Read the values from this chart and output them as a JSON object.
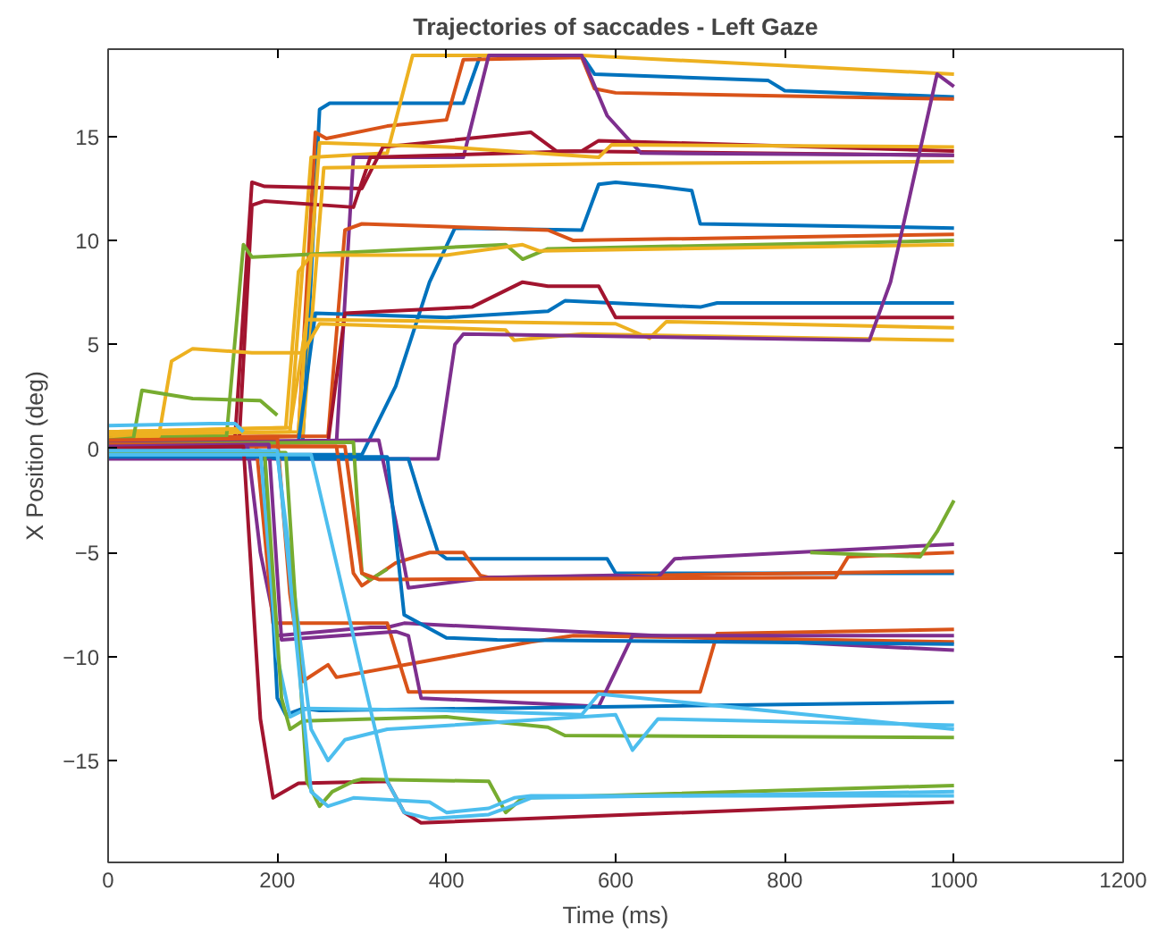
{
  "chart_data": {
    "type": "line",
    "title": "Trajectories of saccades - Left Gaze",
    "xlabel": "Time (ms)",
    "ylabel": "X Position (deg)",
    "xlim": [
      0,
      1200
    ],
    "ylim": [
      -19.9,
      19.2
    ],
    "xticks": [
      0,
      200,
      400,
      600,
      800,
      1000,
      1200
    ],
    "yticks": [
      -15,
      -10,
      -5,
      0,
      5,
      10,
      15
    ],
    "grid": false,
    "marker": "none",
    "line_style": "solid",
    "series": [
      {
        "color": "#0072bd",
        "x": [
          0,
          230,
          250,
          262,
          420,
          440,
          560,
          575,
          780,
          800,
          1000
        ],
        "values": [
          0.3,
          0.3,
          16.3,
          16.6,
          16.6,
          18.9,
          18.9,
          18.0,
          17.7,
          17.2,
          16.9
        ]
      },
      {
        "color": "#d95319",
        "x": [
          0,
          225,
          245,
          258,
          330,
          400,
          420,
          560,
          575,
          600,
          1000
        ],
        "values": [
          0.5,
          0.6,
          15.2,
          14.9,
          15.5,
          15.8,
          18.7,
          18.8,
          17.3,
          17.1,
          16.8
        ]
      },
      {
        "color": "#edb120",
        "x": [
          0,
          215,
          240,
          330,
          360,
          560,
          1000
        ],
        "values": [
          0.6,
          0.8,
          14.0,
          14.2,
          18.9,
          18.9,
          18.0
        ]
      },
      {
        "color": "#a2142f",
        "x": [
          0,
          150,
          170,
          185,
          300,
          325,
          500,
          530,
          1000
        ],
        "values": [
          0.4,
          0.5,
          12.8,
          12.6,
          12.5,
          14.5,
          15.2,
          14.3,
          14.1
        ]
      },
      {
        "color": "#7e2f8e",
        "x": [
          0,
          270,
          290,
          420,
          450,
          560,
          590,
          630,
          1000
        ],
        "values": [
          0.2,
          0.3,
          14.0,
          14.0,
          18.9,
          18.9,
          16.0,
          14.2,
          14.1
        ]
      },
      {
        "color": "#a2142f",
        "x": [
          0,
          155,
          170,
          185,
          290,
          310,
          560,
          580,
          1000
        ],
        "values": [
          0.3,
          0.4,
          11.7,
          11.9,
          11.6,
          14.0,
          14.3,
          14.8,
          14.3
        ]
      },
      {
        "color": "#edb120",
        "x": [
          0,
          225,
          250,
          400,
          580,
          595,
          1000
        ],
        "values": [
          0.7,
          0.8,
          14.7,
          14.5,
          14.0,
          14.6,
          14.5
        ]
      },
      {
        "color": "#edb120",
        "x": [
          0,
          230,
          255,
          600,
          1000
        ],
        "values": [
          0.4,
          0.6,
          13.5,
          13.7,
          13.8
        ]
      },
      {
        "color": "#0072bd",
        "x": [
          0,
          300,
          340,
          380,
          410,
          560,
          580,
          600,
          650,
          690,
          700,
          1000
        ],
        "values": [
          -0.3,
          -0.3,
          3.0,
          8.0,
          10.6,
          10.5,
          12.7,
          12.8,
          12.6,
          12.4,
          10.8,
          10.6
        ]
      },
      {
        "color": "#d95319",
        "x": [
          0,
          260,
          280,
          300,
          520,
          550,
          1000
        ],
        "values": [
          0.5,
          0.6,
          10.5,
          10.8,
          10.5,
          10.0,
          10.3
        ]
      },
      {
        "color": "#77ac30",
        "x": [
          0,
          140,
          160,
          170,
          470,
          490,
          520,
          1000
        ],
        "values": [
          0.5,
          0.6,
          9.8,
          9.2,
          9.8,
          9.1,
          9.6,
          10.0
        ]
      },
      {
        "color": "#edb120",
        "x": [
          0,
          210,
          225,
          240,
          400,
          490,
          510,
          1000
        ],
        "values": [
          0.8,
          1.0,
          8.5,
          9.3,
          9.3,
          9.8,
          9.5,
          9.8
        ]
      },
      {
        "color": "#0072bd",
        "x": [
          0,
          225,
          245,
          400,
          520,
          540,
          700,
          720,
          1000
        ],
        "values": [
          0.2,
          0.3,
          6.5,
          6.3,
          6.6,
          7.1,
          6.8,
          7.0,
          7.0
        ]
      },
      {
        "color": "#a2142f",
        "x": [
          0,
          260,
          280,
          430,
          490,
          520,
          580,
          600,
          1000
        ],
        "values": [
          0.3,
          0.3,
          6.5,
          6.8,
          8.0,
          7.8,
          7.8,
          6.3,
          6.3
        ]
      },
      {
        "color": "#edb120",
        "x": [
          0,
          215,
          235,
          600,
          640,
          660,
          1000
        ],
        "values": [
          0.8,
          1.0,
          6.2,
          6.0,
          5.3,
          6.1,
          5.8
        ]
      },
      {
        "color": "#edb120",
        "x": [
          0,
          60,
          75,
          100,
          170,
          230,
          250,
          470,
          480,
          560,
          1000
        ],
        "values": [
          0.5,
          0.6,
          4.2,
          4.8,
          4.6,
          4.6,
          6.0,
          5.7,
          5.2,
          5.5,
          5.2
        ]
      },
      {
        "color": "#7e2f8e",
        "x": [
          0,
          390,
          410,
          420,
          900,
          925,
          980,
          1000
        ],
        "values": [
          -0.5,
          -0.5,
          5.0,
          5.5,
          5.2,
          8.0,
          18.0,
          17.4
        ]
      },
      {
        "color": "#77ac30",
        "x": [
          0,
          30,
          40,
          100,
          180,
          200
        ],
        "values": [
          0.4,
          0.5,
          2.8,
          2.4,
          2.3,
          1.6
        ]
      },
      {
        "color": "#4dbeee",
        "x": [
          0,
          120,
          150,
          160
        ],
        "values": [
          1.1,
          1.2,
          1.2,
          0.8
        ]
      },
      {
        "color": "#0072bd",
        "x": [
          0,
          170,
          190,
          200,
          355,
          370,
          390,
          400,
          590,
          600,
          1000
        ],
        "values": [
          -0.2,
          -0.2,
          -0.4,
          -0.5,
          -0.5,
          -2.5,
          -5.0,
          -5.3,
          -5.3,
          -6.0,
          -6.0
        ]
      },
      {
        "color": "#d95319",
        "x": [
          0,
          270,
          290,
          300,
          340,
          380,
          420,
          440,
          450,
          1000
        ],
        "values": [
          0.1,
          0.1,
          -6.0,
          -6.6,
          -5.5,
          -5.0,
          -5.0,
          -6.1,
          -6.2,
          -5.9
        ]
      },
      {
        "color": "#7e2f8e",
        "x": [
          0,
          320,
          340,
          355,
          450,
          600,
          650,
          670,
          1000
        ],
        "values": [
          0.3,
          0.4,
          -3.5,
          -6.7,
          -6.2,
          -6.1,
          -6.2,
          -5.3,
          -4.6
        ]
      },
      {
        "color": "#77ac30",
        "x": [
          0,
          290,
          300,
          310,
          330
        ],
        "values": [
          0.2,
          0.3,
          -6.0,
          -6.3,
          -5.8
        ]
      },
      {
        "color": "#d95319",
        "x": [
          0,
          280,
          300,
          320,
          860,
          875,
          1000
        ],
        "values": [
          0.1,
          0.1,
          -6.0,
          -6.3,
          -6.2,
          -5.2,
          -5.0
        ]
      },
      {
        "color": "#77ac30",
        "x": [
          830,
          960,
          980,
          1000
        ],
        "values": [
          -5.0,
          -5.2,
          -4.0,
          -2.5
        ]
      },
      {
        "color": "#7e2f8e",
        "x": [
          0,
          165,
          180,
          200,
          310,
          330,
          350,
          400,
          1000
        ],
        "values": [
          0.0,
          0.1,
          -5.0,
          -9.0,
          -8.6,
          -8.6,
          -8.4,
          -8.5,
          -9.7
        ]
      },
      {
        "color": "#d95319",
        "x": [
          0,
          175,
          195,
          330,
          355,
          400,
          700,
          720,
          1000
        ],
        "values": [
          0.2,
          0.2,
          -8.4,
          -8.4,
          -11.7,
          -11.7,
          -11.7,
          -8.9,
          -8.7
        ]
      },
      {
        "color": "#d95319",
        "x": [
          0,
          200,
          215,
          230,
          260,
          270,
          500,
          550,
          1000
        ],
        "values": [
          0.4,
          0.5,
          -7.0,
          -11.2,
          -10.4,
          -11.0,
          -9.3,
          -9.0,
          -9.3
        ]
      },
      {
        "color": "#7e2f8e",
        "x": [
          0,
          190,
          205,
          340,
          355,
          370,
          580,
          620,
          1000
        ],
        "values": [
          0.1,
          0.2,
          -9.2,
          -8.8,
          -9.0,
          -12.0,
          -12.4,
          -9.0,
          -9.0
        ]
      },
      {
        "color": "#0072bd",
        "x": [
          0,
          330,
          350,
          400,
          460,
          1000
        ],
        "values": [
          -0.4,
          -0.4,
          -8.0,
          -9.1,
          -9.2,
          -9.4
        ]
      },
      {
        "color": "#0072bd",
        "x": [
          0,
          185,
          200,
          210,
          230,
          250,
          1000
        ],
        "values": [
          -0.2,
          -0.2,
          -12.0,
          -12.8,
          -12.5,
          -12.6,
          -12.2
        ]
      },
      {
        "color": "#4dbeee",
        "x": [
          0,
          180,
          200,
          215,
          235,
          400,
          560,
          580,
          1000
        ],
        "values": [
          -0.1,
          -0.1,
          -10.0,
          -12.9,
          -12.5,
          -12.6,
          -12.8,
          -11.8,
          -13.5
        ]
      },
      {
        "color": "#77ac30",
        "x": [
          0,
          185,
          205,
          215,
          230,
          400,
          520,
          540,
          1000
        ],
        "values": [
          -0.2,
          -0.2,
          -12.0,
          -13.5,
          -13.1,
          -12.9,
          -13.4,
          -13.8,
          -13.9
        ]
      },
      {
        "color": "#4dbeee",
        "x": [
          0,
          200,
          240,
          260,
          280,
          330,
          600,
          620,
          650,
          1000
        ],
        "values": [
          -0.3,
          -0.3,
          -13.5,
          -15.0,
          -14.0,
          -13.5,
          -12.8,
          -14.5,
          -13.0,
          -13.3
        ]
      },
      {
        "color": "#a2142f",
        "x": [
          0,
          160,
          180,
          195,
          225,
          330,
          350,
          370,
          1000
        ],
        "values": [
          0.0,
          0.1,
          -13.0,
          -16.8,
          -16.1,
          -16.0,
          -17.5,
          -18.0,
          -17.0
        ]
      },
      {
        "color": "#77ac30",
        "x": [
          0,
          210,
          235,
          250,
          265,
          290,
          300,
          450,
          470,
          490,
          1000
        ],
        "values": [
          -0.2,
          -0.2,
          -16.0,
          -17.2,
          -16.5,
          -16.0,
          -15.9,
          -16.0,
          -17.5,
          -16.8,
          -16.2
        ]
      },
      {
        "color": "#4dbeee",
        "x": [
          0,
          200,
          240,
          260,
          290,
          380,
          400,
          450,
          480,
          500,
          1000
        ],
        "values": [
          -0.1,
          -0.1,
          -16.5,
          -17.2,
          -16.8,
          -17.0,
          -17.5,
          -17.3,
          -16.8,
          -16.7,
          -16.7
        ]
      },
      {
        "color": "#4dbeee",
        "x": [
          0,
          240,
          330,
          350,
          380,
          450,
          470,
          500,
          1000
        ],
        "values": [
          -0.3,
          -0.3,
          -16.0,
          -17.5,
          -17.8,
          -17.6,
          -17.3,
          -16.8,
          -16.5
        ]
      }
    ]
  }
}
